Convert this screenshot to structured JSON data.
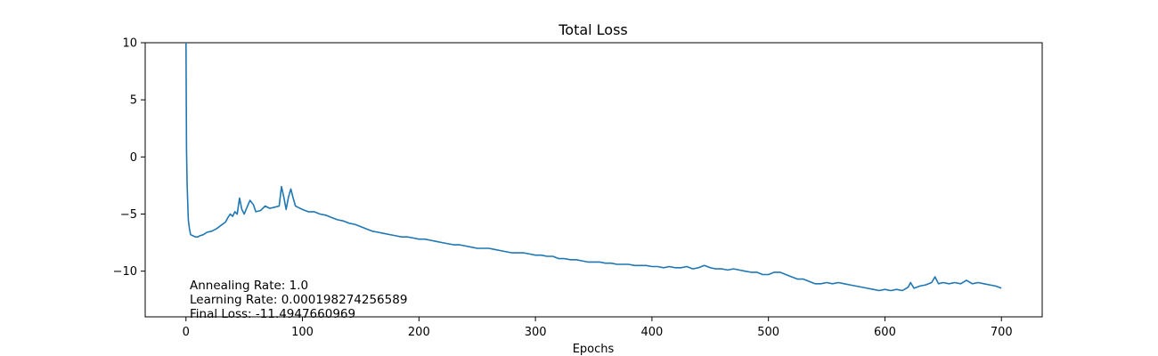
{
  "chart_data": {
    "type": "line",
    "title": "Total Loss",
    "xlabel": "Epochs",
    "ylabel": "",
    "xlim": [
      -35,
      735
    ],
    "ylim": [
      -14,
      10
    ],
    "x_ticks": [
      0,
      100,
      200,
      300,
      400,
      500,
      600,
      700
    ],
    "y_ticks": [
      10,
      5,
      0,
      -5,
      -10
    ],
    "grid": false,
    "series_color": "#1f77b4",
    "annotations": [
      "Annealing Rate: 1.0",
      "Learning Rate: 0.000198274256589",
      "Final Loss: -11.4947660969"
    ],
    "series": [
      {
        "points": [
          [
            0,
            10
          ],
          [
            0.5,
            0.6
          ],
          [
            1,
            -2.5
          ],
          [
            2,
            -5.5
          ],
          [
            3,
            -6.3
          ],
          [
            4,
            -6.8
          ],
          [
            6,
            -6.9
          ],
          [
            8,
            -7.0
          ],
          [
            10,
            -7.0
          ],
          [
            12,
            -6.9
          ],
          [
            15,
            -6.8
          ],
          [
            18,
            -6.6
          ],
          [
            22,
            -6.5
          ],
          [
            26,
            -6.3
          ],
          [
            30,
            -6.0
          ],
          [
            34,
            -5.7
          ],
          [
            36,
            -5.3
          ],
          [
            38,
            -5.0
          ],
          [
            40,
            -5.2
          ],
          [
            42,
            -4.8
          ],
          [
            44,
            -5.0
          ],
          [
            46,
            -3.6
          ],
          [
            48,
            -4.6
          ],
          [
            50,
            -5.0
          ],
          [
            52,
            -4.5
          ],
          [
            55,
            -3.8
          ],
          [
            58,
            -4.2
          ],
          [
            60,
            -4.8
          ],
          [
            64,
            -4.7
          ],
          [
            68,
            -4.3
          ],
          [
            72,
            -4.5
          ],
          [
            76,
            -4.4
          ],
          [
            80,
            -4.3
          ],
          [
            82,
            -2.6
          ],
          [
            84,
            -3.5
          ],
          [
            86,
            -4.6
          ],
          [
            88,
            -3.5
          ],
          [
            90,
            -2.8
          ],
          [
            92,
            -3.6
          ],
          [
            94,
            -4.3
          ],
          [
            96,
            -4.4
          ],
          [
            100,
            -4.6
          ],
          [
            105,
            -4.8
          ],
          [
            110,
            -4.8
          ],
          [
            115,
            -5.0
          ],
          [
            120,
            -5.1
          ],
          [
            125,
            -5.3
          ],
          [
            130,
            -5.5
          ],
          [
            135,
            -5.6
          ],
          [
            140,
            -5.8
          ],
          [
            145,
            -5.9
          ],
          [
            150,
            -6.1
          ],
          [
            155,
            -6.3
          ],
          [
            160,
            -6.5
          ],
          [
            165,
            -6.6
          ],
          [
            170,
            -6.7
          ],
          [
            175,
            -6.8
          ],
          [
            180,
            -6.9
          ],
          [
            185,
            -7.0
          ],
          [
            190,
            -7.0
          ],
          [
            195,
            -7.1
          ],
          [
            200,
            -7.2
          ],
          [
            205,
            -7.2
          ],
          [
            210,
            -7.3
          ],
          [
            215,
            -7.4
          ],
          [
            220,
            -7.5
          ],
          [
            225,
            -7.6
          ],
          [
            230,
            -7.7
          ],
          [
            235,
            -7.7
          ],
          [
            240,
            -7.8
          ],
          [
            245,
            -7.9
          ],
          [
            250,
            -8.0
          ],
          [
            255,
            -8.0
          ],
          [
            260,
            -8.0
          ],
          [
            265,
            -8.1
          ],
          [
            270,
            -8.2
          ],
          [
            275,
            -8.3
          ],
          [
            280,
            -8.4
          ],
          [
            285,
            -8.4
          ],
          [
            290,
            -8.4
          ],
          [
            295,
            -8.5
          ],
          [
            300,
            -8.6
          ],
          [
            305,
            -8.6
          ],
          [
            310,
            -8.7
          ],
          [
            315,
            -8.7
          ],
          [
            320,
            -8.9
          ],
          [
            325,
            -8.9
          ],
          [
            330,
            -9.0
          ],
          [
            335,
            -9.0
          ],
          [
            340,
            -9.1
          ],
          [
            345,
            -9.2
          ],
          [
            350,
            -9.2
          ],
          [
            355,
            -9.2
          ],
          [
            360,
            -9.3
          ],
          [
            365,
            -9.3
          ],
          [
            370,
            -9.4
          ],
          [
            375,
            -9.4
          ],
          [
            380,
            -9.4
          ],
          [
            385,
            -9.5
          ],
          [
            390,
            -9.5
          ],
          [
            395,
            -9.5
          ],
          [
            400,
            -9.6
          ],
          [
            405,
            -9.6
          ],
          [
            410,
            -9.7
          ],
          [
            415,
            -9.6
          ],
          [
            420,
            -9.7
          ],
          [
            425,
            -9.7
          ],
          [
            430,
            -9.6
          ],
          [
            435,
            -9.8
          ],
          [
            440,
            -9.7
          ],
          [
            445,
            -9.5
          ],
          [
            450,
            -9.7
          ],
          [
            455,
            -9.8
          ],
          [
            460,
            -9.8
          ],
          [
            465,
            -9.9
          ],
          [
            470,
            -9.8
          ],
          [
            475,
            -9.9
          ],
          [
            480,
            -10.0
          ],
          [
            485,
            -10.1
          ],
          [
            490,
            -10.1
          ],
          [
            495,
            -10.3
          ],
          [
            500,
            -10.3
          ],
          [
            505,
            -10.1
          ],
          [
            510,
            -10.1
          ],
          [
            515,
            -10.3
          ],
          [
            520,
            -10.5
          ],
          [
            525,
            -10.7
          ],
          [
            530,
            -10.7
          ],
          [
            535,
            -10.9
          ],
          [
            540,
            -11.1
          ],
          [
            545,
            -11.1
          ],
          [
            550,
            -11.0
          ],
          [
            555,
            -11.1
          ],
          [
            560,
            -11.0
          ],
          [
            565,
            -11.1
          ],
          [
            570,
            -11.2
          ],
          [
            575,
            -11.3
          ],
          [
            580,
            -11.4
          ],
          [
            585,
            -11.5
          ],
          [
            590,
            -11.6
          ],
          [
            595,
            -11.7
          ],
          [
            600,
            -11.6
          ],
          [
            605,
            -11.7
          ],
          [
            610,
            -11.6
          ],
          [
            615,
            -11.7
          ],
          [
            620,
            -11.4
          ],
          [
            622,
            -11.0
          ],
          [
            625,
            -11.5
          ],
          [
            630,
            -11.3
          ],
          [
            635,
            -11.2
          ],
          [
            640,
            -11.0
          ],
          [
            643,
            -10.5
          ],
          [
            646,
            -11.1
          ],
          [
            650,
            -11.0
          ],
          [
            655,
            -11.1
          ],
          [
            660,
            -11.0
          ],
          [
            665,
            -11.1
          ],
          [
            670,
            -10.8
          ],
          [
            675,
            -11.1
          ],
          [
            680,
            -11.0
          ],
          [
            685,
            -11.1
          ],
          [
            690,
            -11.2
          ],
          [
            695,
            -11.3
          ],
          [
            700,
            -11.49
          ]
        ]
      }
    ]
  }
}
